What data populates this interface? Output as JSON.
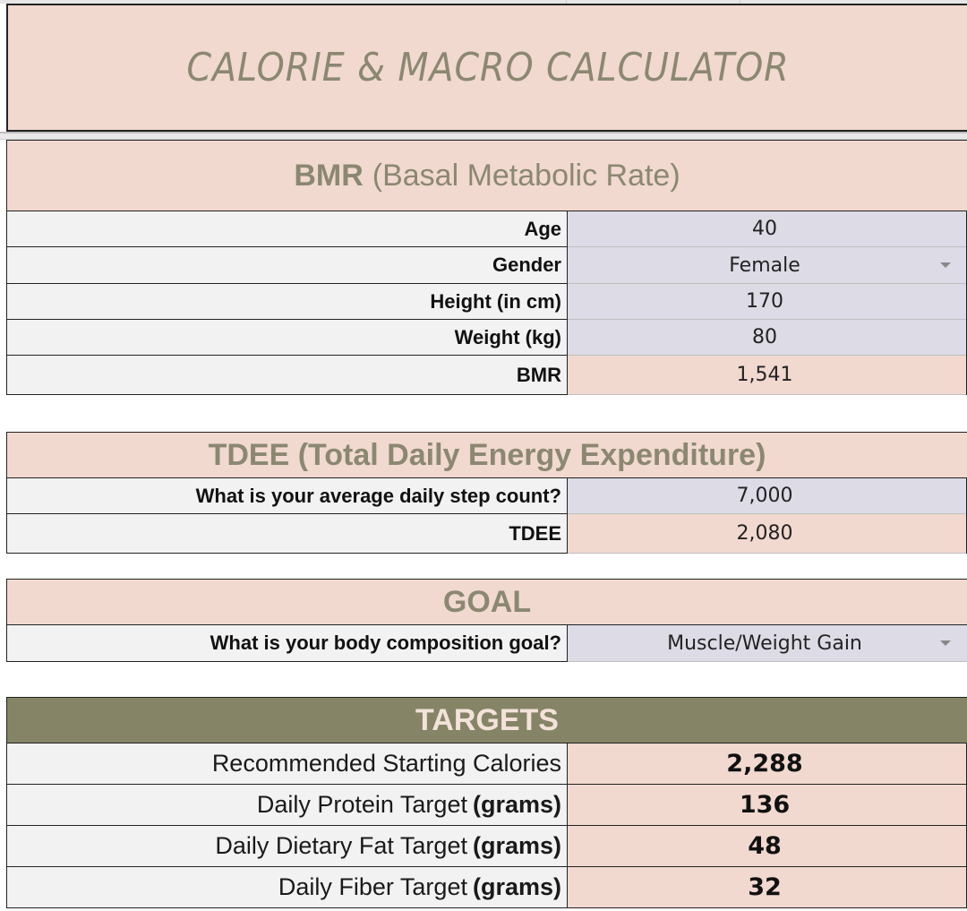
{
  "title": "CALORIE & MACRO CALCULATOR",
  "bmr_section": {
    "heading_bold": "BMR",
    "heading_light": "(Basal Metabolic Rate)",
    "rows": [
      {
        "label": "Age",
        "value": "40"
      },
      {
        "label": "Gender",
        "value": "Female"
      },
      {
        "label": "Height (in cm)",
        "value": "170"
      },
      {
        "label": "Weight (kg)",
        "value": "80"
      },
      {
        "label": "BMR",
        "value": "1,541"
      }
    ]
  },
  "tdee_section": {
    "heading": "TDEE (Total Daily Energy Expenditure)",
    "rows": [
      {
        "label": "What is your average daily step count?",
        "value": "7,000"
      },
      {
        "label": "TDEE",
        "value": "2,080"
      }
    ]
  },
  "goal_section": {
    "heading": "GOAL",
    "rows": [
      {
        "label": "What is your body composition goal?",
        "value": "Muscle/Weight Gain"
      }
    ]
  },
  "targets_section": {
    "heading": "TARGETS",
    "rows": [
      {
        "label": "Recommended Starting Calories",
        "unit": "",
        "value": "2,288"
      },
      {
        "label": "Daily Protein Target",
        "unit": "(grams)",
        "value": "136"
      },
      {
        "label": "Daily Dietary Fat Target",
        "unit": "(grams)",
        "value": "48"
      },
      {
        "label": "Daily Fiber Target",
        "unit": "(grams)",
        "value": "32"
      }
    ]
  },
  "colors": {
    "peach": "#f1d9cf",
    "input_lavender": "#dcdbe6",
    "label_gray": "#f2f2f2",
    "olive_header": "#858466",
    "heading_text": "#8b8871"
  },
  "icons": {
    "dropdown": "chevron-down-icon"
  }
}
